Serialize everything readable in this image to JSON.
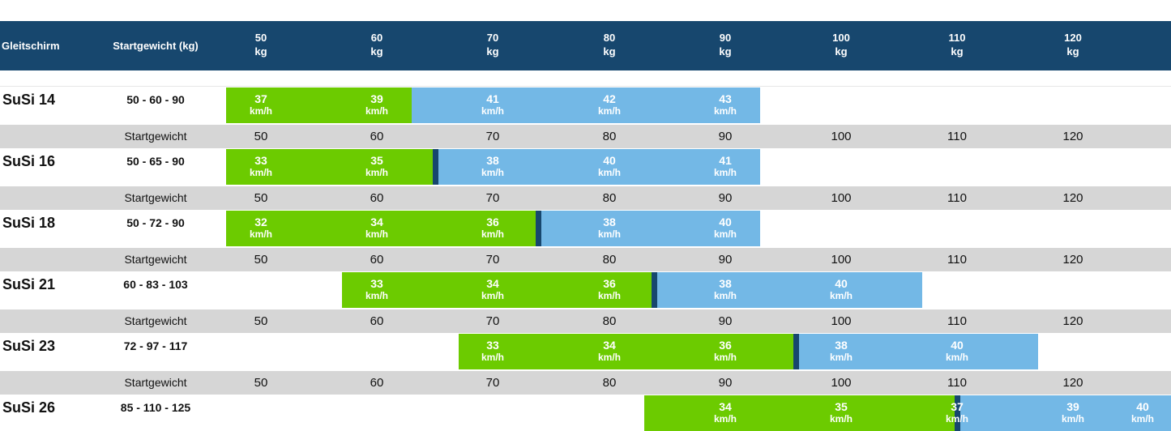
{
  "header": {
    "col_name": "Gleitschirm",
    "col_weight": "Startgewicht (kg)",
    "weights": [
      "50",
      "60",
      "70",
      "80",
      "90",
      "100",
      "110",
      "120"
    ],
    "unit": "kg"
  },
  "weight_row": {
    "label": "Startgewicht",
    "values": [
      "50",
      "60",
      "70",
      "80",
      "90",
      "100",
      "110",
      "120"
    ]
  },
  "speed_unit": "km/h",
  "colors": {
    "header": "#17476e",
    "green": "#6ccb00",
    "blue": "#73b8e6",
    "divider": "#17476e",
    "row_gray": "#d6d6d6"
  },
  "models": [
    {
      "name": "SuSi 14",
      "range": "50 - 60 - 90",
      "speeds": [
        "37",
        "39",
        "41",
        "42",
        "43"
      ],
      "green_count": 2
    },
    {
      "name": "SuSi 16",
      "range": "50 - 65 - 90",
      "speeds": [
        "33",
        "35",
        "38",
        "40",
        "41"
      ],
      "green_count": 2
    },
    {
      "name": "SuSi 18",
      "range": "50 - 72 - 90",
      "speeds": [
        "32",
        "34",
        "36",
        "38",
        "40"
      ],
      "green_count": 3
    },
    {
      "name": "SuSi 21",
      "range": "60 - 83 - 103",
      "speeds": [
        "33",
        "34",
        "36",
        "38",
        "40"
      ],
      "green_count": 3
    },
    {
      "name": "SuSi 23",
      "range": "72 - 97 - 117",
      "speeds": [
        "33",
        "34",
        "36",
        "38",
        "40"
      ],
      "green_count": 3
    },
    {
      "name": "SuSi 26",
      "range": "85 - 110 - 125",
      "speeds": [
        "34",
        "35",
        "37",
        "39",
        "40"
      ],
      "green_count": 2
    }
  ]
}
